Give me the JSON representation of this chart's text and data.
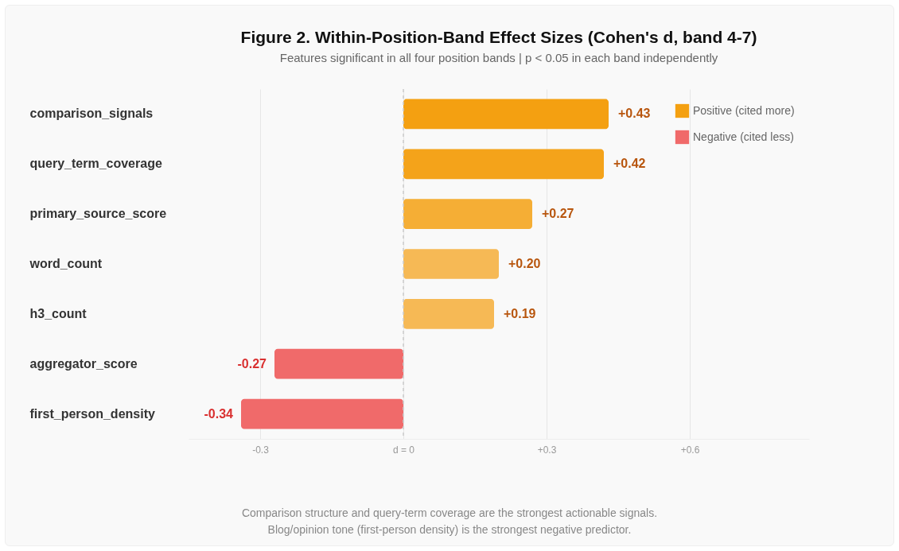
{
  "chart_data": {
    "type": "bar",
    "orientation": "horizontal",
    "title": "Figure 2. Within-Position-Band Effect Sizes (Cohen's d, band 4-7)",
    "subtitle": "Features significant in all four position bands | p < 0.05 in each band independently",
    "categories": [
      "comparison_signals",
      "query_term_coverage",
      "primary_source_score",
      "word_count",
      "h3_count",
      "aggregator_score",
      "first_person_density"
    ],
    "series": [
      {
        "name": "Positive (cited more)",
        "color": "#f4a011",
        "colors": [
          "#f4a011",
          "#f4a31a",
          "#f5ae35",
          "#f6b955",
          "#f6b955",
          null,
          null
        ],
        "values": [
          0.43,
          0.42,
          0.27,
          0.2,
          0.19,
          null,
          null
        ],
        "value_labels": [
          "+0.43",
          "+0.42",
          "+0.27",
          "+0.20",
          "+0.19",
          null,
          null
        ]
      },
      {
        "name": "Negative (cited less)",
        "color": "#f06a6a",
        "colors": [
          null,
          null,
          null,
          null,
          null,
          "#f06a6a",
          "#f06a6a"
        ],
        "values": [
          null,
          null,
          null,
          null,
          null,
          -0.27,
          -0.34
        ],
        "value_labels": [
          null,
          null,
          null,
          null,
          null,
          "-0.27",
          "-0.34"
        ]
      }
    ],
    "xlim": [
      -0.45,
      0.85
    ],
    "xticks": [
      {
        "value": -0.3,
        "label": "-0.3"
      },
      {
        "value": 0,
        "label": "d = 0"
      },
      {
        "value": 0.3,
        "label": "+0.3"
      },
      {
        "value": 0.6,
        "label": "+0.6"
      }
    ],
    "grid": "x",
    "legend": "top right",
    "ref_lines": [
      {
        "axis": "x",
        "value": 0,
        "line_style": "dashed",
        "color": "#cccccc"
      }
    ],
    "annotations": [
      "Comparison structure and query-term coverage are the strongest actionable signals.",
      "Blog/opinion tone (first-person density) is the strongest negative predictor."
    ]
  }
}
